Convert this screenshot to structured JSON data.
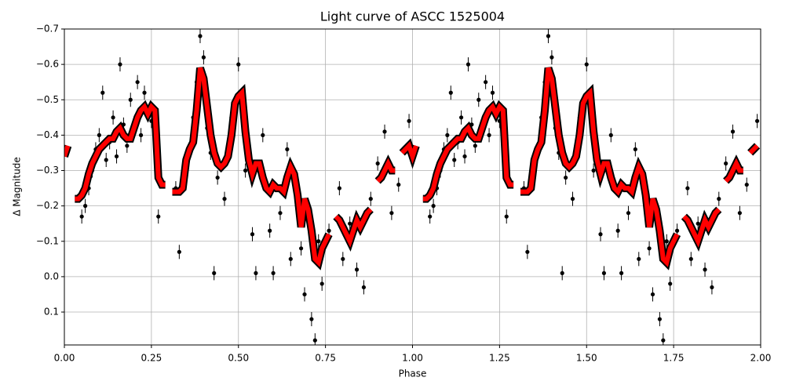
{
  "chart_data": {
    "type": "scatter",
    "title": "Light curve of ASCC 1525004",
    "xlabel": "Phase",
    "ylabel": "Δ Magnitude",
    "xlim": [
      0,
      2
    ],
    "ylim": [
      0.193,
      -0.7
    ],
    "xticks": [
      {
        "value": 0,
        "label": "0.00"
      },
      {
        "value": 0.25,
        "label": "0.25"
      },
      {
        "value": 0.5,
        "label": "0.50"
      },
      {
        "value": 0.75,
        "label": "0.75"
      },
      {
        "value": 1,
        "label": "1.00"
      },
      {
        "value": 1.25,
        "label": "1.25"
      },
      {
        "value": 1.5,
        "label": "1.50"
      },
      {
        "value": 1.75,
        "label": "1.75"
      },
      {
        "value": 2,
        "label": "2.00"
      }
    ],
    "yticks": [
      {
        "value": -0.7,
        "label": "−0.7"
      },
      {
        "value": -0.6,
        "label": "−0.6"
      },
      {
        "value": -0.5,
        "label": "−0.5"
      },
      {
        "value": -0.4,
        "label": "−0.4"
      },
      {
        "value": -0.3,
        "label": "−0.3"
      },
      {
        "value": -0.2,
        "label": "−0.2"
      },
      {
        "value": -0.1,
        "label": "−0.1"
      },
      {
        "value": 0,
        "label": "0.0"
      },
      0.1
    ],
    "grid": true,
    "series": [
      {
        "color": "#000000",
        "yerr": 0.02,
        "x": [
          0.05,
          0.06,
          0.07,
          0.08,
          0.09,
          0.1,
          0.11,
          0.12,
          0.13,
          0.14,
          0.15,
          0.16,
          0.17,
          0.18,
          0.19,
          0.21,
          0.22,
          0.23,
          0.25,
          0.27,
          0.32,
          0.33,
          0.35,
          0.37,
          0.38,
          0.39,
          0.4,
          0.41,
          0.42,
          0.43,
          0.44,
          0.46,
          0.48,
          0.5,
          0.51,
          0.52,
          0.54,
          0.55,
          0.57,
          0.59,
          0.6,
          0.62,
          0.64,
          0.65,
          0.67,
          0.68,
          0.69,
          0.7,
          0.71,
          0.72,
          0.73,
          0.74,
          0.76,
          0.79,
          0.8,
          0.82,
          0.84,
          0.86,
          0.88,
          0.9,
          0.92,
          0.94,
          0.96,
          0.99,
          1.05,
          1.06,
          1.07,
          1.08,
          1.09,
          1.1,
          1.11,
          1.12,
          1.13,
          1.14,
          1.15,
          1.16,
          1.17,
          1.18,
          1.19,
          1.21,
          1.22,
          1.23,
          1.25,
          1.27,
          1.32,
          1.33,
          1.35,
          1.37,
          1.38,
          1.39,
          1.4,
          1.41,
          1.42,
          1.43,
          1.44,
          1.46,
          1.48,
          1.5,
          1.51,
          1.52,
          1.54,
          1.55,
          1.57,
          1.59,
          1.6,
          1.62,
          1.64,
          1.65,
          1.67,
          1.68,
          1.69,
          1.7,
          1.71,
          1.72,
          1.73,
          1.74,
          1.76,
          1.79,
          1.8,
          1.82,
          1.84,
          1.86,
          1.88,
          1.9,
          1.92,
          1.94,
          1.96,
          1.99
        ],
        "values": [
          -0.17,
          -0.2,
          -0.25,
          -0.3,
          -0.36,
          -0.4,
          -0.52,
          -0.33,
          -0.38,
          -0.45,
          -0.34,
          -0.6,
          -0.43,
          -0.37,
          -0.5,
          -0.55,
          -0.4,
          -0.52,
          -0.44,
          -0.17,
          -0.25,
          -0.07,
          -0.3,
          -0.45,
          -0.55,
          -0.68,
          -0.62,
          -0.42,
          -0.35,
          -0.01,
          -0.28,
          -0.22,
          -0.45,
          -0.6,
          -0.48,
          -0.3,
          -0.12,
          -0.01,
          -0.4,
          -0.13,
          -0.01,
          -0.18,
          -0.36,
          -0.05,
          -0.25,
          -0.08,
          0.05,
          -0.2,
          0.12,
          0.18,
          -0.1,
          0.02,
          -0.13,
          -0.25,
          -0.05,
          -0.15,
          -0.02,
          0.03,
          -0.22,
          -0.32,
          -0.41,
          -0.18,
          -0.26,
          -0.44,
          -0.17,
          -0.2,
          -0.25,
          -0.3,
          -0.36,
          -0.4,
          -0.52,
          -0.33,
          -0.38,
          -0.45,
          -0.34,
          -0.6,
          -0.43,
          -0.37,
          -0.5,
          -0.55,
          -0.4,
          -0.52,
          -0.44,
          -0.17,
          -0.25,
          -0.07,
          -0.3,
          -0.45,
          -0.55,
          -0.68,
          -0.62,
          -0.42,
          -0.35,
          -0.01,
          -0.28,
          -0.22,
          -0.45,
          -0.6,
          -0.48,
          -0.3,
          -0.12,
          -0.01,
          -0.4,
          -0.13,
          -0.01,
          -0.18,
          -0.36,
          -0.05,
          -0.25,
          -0.08,
          0.05,
          -0.2,
          0.12,
          0.18,
          -0.1,
          0.02,
          -0.13,
          -0.25,
          -0.05,
          -0.15,
          -0.02,
          0.03,
          -0.22,
          -0.32,
          -0.41,
          -0.18,
          -0.26,
          -0.44
        ]
      },
      {
        "type": "line",
        "color": "#ff0000",
        "x": [
          0.0,
          0.01,
          0.02,
          0.03,
          0.04,
          0.05,
          0.06,
          0.07,
          0.08,
          0.09,
          0.1,
          0.11,
          0.12,
          0.13,
          0.14,
          0.15,
          0.16,
          0.17,
          0.18,
          0.19,
          0.2,
          0.21,
          0.22,
          0.23,
          0.24,
          0.25,
          0.26,
          0.27,
          0.28,
          0.29,
          0.3,
          0.31,
          0.32,
          0.33,
          0.34,
          0.35,
          0.36,
          0.37,
          0.38,
          0.39,
          0.4,
          0.41,
          0.42,
          0.43,
          0.44,
          0.45,
          0.46,
          0.47,
          0.48,
          0.49,
          0.5,
          0.51,
          0.52,
          0.53,
          0.54,
          0.55,
          0.56,
          0.57,
          0.58,
          0.59,
          0.6,
          0.61,
          0.62,
          0.63,
          0.64,
          0.65,
          0.66,
          0.67,
          0.68,
          0.69,
          0.7,
          0.71,
          0.72,
          0.73,
          0.74,
          0.75,
          0.76,
          0.77,
          0.78,
          0.79,
          0.8,
          0.81,
          0.82,
          0.83,
          0.84,
          0.85,
          0.86,
          0.87,
          0.88,
          0.89,
          0.9,
          0.91,
          0.92,
          0.93,
          0.94,
          0.95,
          0.96,
          0.97,
          0.98,
          0.99,
          1.0,
          1.01,
          1.02,
          1.03,
          1.04,
          1.05,
          1.06,
          1.07,
          1.08,
          1.09,
          1.1,
          1.11,
          1.12,
          1.13,
          1.14,
          1.15,
          1.16,
          1.17,
          1.18,
          1.19,
          1.2,
          1.21,
          1.22,
          1.23,
          1.24,
          1.25,
          1.26,
          1.27,
          1.28,
          1.29,
          1.3,
          1.31,
          1.32,
          1.33,
          1.34,
          1.35,
          1.36,
          1.37,
          1.38,
          1.39,
          1.4,
          1.41,
          1.42,
          1.43,
          1.44,
          1.45,
          1.46,
          1.47,
          1.48,
          1.49,
          1.5,
          1.51,
          1.52,
          1.53,
          1.54,
          1.55,
          1.56,
          1.57,
          1.58,
          1.59,
          1.6,
          1.61,
          1.62,
          1.63,
          1.64,
          1.65,
          1.66,
          1.67,
          1.68,
          1.69,
          1.7,
          1.71,
          1.72,
          1.73,
          1.74,
          1.75,
          1.76,
          1.77,
          1.78,
          1.79,
          1.8,
          1.81,
          1.82,
          1.83,
          1.84,
          1.85,
          1.86,
          1.87,
          1.88,
          1.89,
          1.9,
          1.91,
          1.92,
          1.93,
          1.94,
          1.95,
          1.96,
          1.97,
          1.98,
          1.99
        ],
        "values": [
          -0.34,
          -0.37,
          null,
          -0.22,
          -0.22,
          -0.23,
          -0.25,
          -0.29,
          -0.32,
          -0.34,
          -0.36,
          -0.37,
          -0.38,
          -0.39,
          -0.39,
          -0.41,
          -0.42,
          -0.4,
          -0.39,
          -0.39,
          -0.42,
          -0.45,
          -0.47,
          -0.48,
          -0.46,
          -0.48,
          -0.47,
          -0.28,
          -0.26,
          -0.26,
          null,
          -0.24,
          -0.24,
          -0.24,
          -0.25,
          -0.33,
          -0.36,
          -0.38,
          -0.47,
          -0.59,
          -0.56,
          -0.48,
          -0.4,
          -0.35,
          -0.32,
          -0.31,
          -0.32,
          -0.34,
          -0.4,
          -0.49,
          -0.51,
          -0.52,
          -0.41,
          -0.33,
          -0.29,
          -0.32,
          -0.32,
          -0.28,
          -0.25,
          -0.24,
          -0.26,
          -0.25,
          -0.25,
          -0.24,
          -0.28,
          -0.31,
          -0.29,
          -0.23,
          -0.14,
          -0.22,
          -0.19,
          -0.13,
          -0.05,
          -0.04,
          -0.08,
          -0.1,
          -0.12,
          null,
          -0.17,
          -0.16,
          -0.14,
          -0.12,
          -0.1,
          -0.13,
          -0.16,
          -0.14,
          -0.16,
          -0.18,
          -0.19,
          null,
          -0.27,
          -0.28,
          -0.3,
          -0.32,
          -0.3,
          -0.3,
          null,
          -0.35,
          -0.36,
          -0.37,
          -0.34,
          -0.37,
          null,
          -0.22,
          -0.22,
          -0.23,
          -0.25,
          -0.29,
          -0.32,
          -0.34,
          -0.36,
          -0.37,
          -0.38,
          -0.39,
          -0.39,
          -0.41,
          -0.42,
          -0.4,
          -0.39,
          -0.39,
          -0.42,
          -0.45,
          -0.47,
          -0.48,
          -0.46,
          -0.48,
          -0.47,
          -0.28,
          -0.26,
          -0.26,
          null,
          -0.24,
          -0.24,
          -0.24,
          -0.25,
          -0.33,
          -0.36,
          -0.38,
          -0.47,
          -0.59,
          -0.56,
          -0.48,
          -0.4,
          -0.35,
          -0.32,
          -0.31,
          -0.32,
          -0.34,
          -0.4,
          -0.49,
          -0.51,
          -0.52,
          -0.41,
          -0.33,
          -0.29,
          -0.32,
          -0.32,
          -0.28,
          -0.25,
          -0.24,
          -0.26,
          -0.25,
          -0.25,
          -0.24,
          -0.28,
          -0.31,
          -0.29,
          -0.23,
          -0.14,
          -0.22,
          -0.19,
          -0.13,
          -0.05,
          -0.04,
          -0.08,
          -0.1,
          -0.12,
          null,
          -0.17,
          -0.16,
          -0.14,
          -0.12,
          -0.1,
          -0.13,
          -0.16,
          -0.14,
          -0.16,
          -0.18,
          -0.19,
          null,
          -0.27,
          -0.28,
          -0.3,
          -0.32,
          -0.3,
          -0.3,
          null,
          -0.35,
          -0.36,
          -0.37
        ]
      }
    ]
  }
}
